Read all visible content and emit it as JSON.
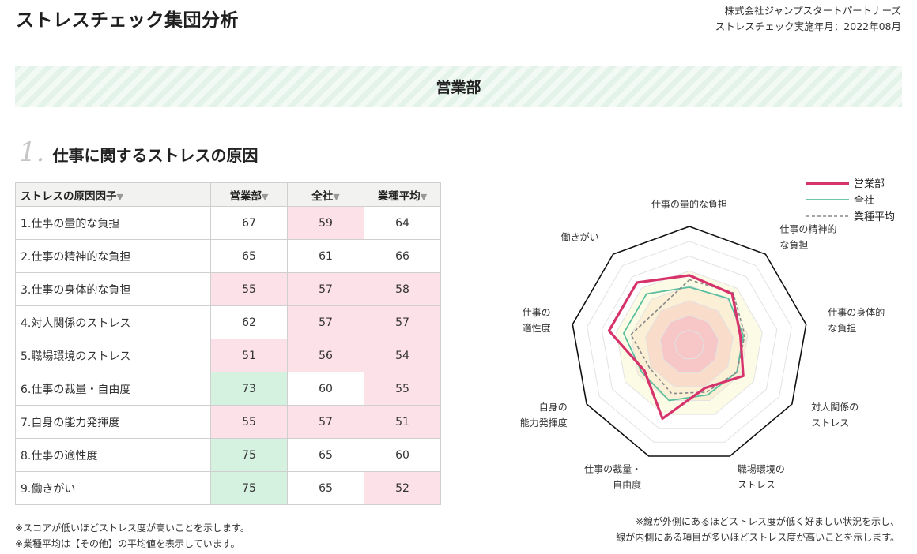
{
  "header": {
    "title": "ストレスチェック集団分析",
    "company": "株式会社ジャンプスタートパートナーズ",
    "date_line": "ストレスチェック実施年月：2022年08月"
  },
  "department": "営業部",
  "section": {
    "number": "1.",
    "title": "仕事に関するストレスの原因"
  },
  "table": {
    "columns": [
      "ストレスの原因因子",
      "営業部",
      "全社",
      "業種平均"
    ],
    "sort_glyph": "▼",
    "rows": [
      {
        "factor": "1.仕事の量的な負担",
        "dept": "67",
        "company": "59",
        "industry": "64",
        "dept_hl": "",
        "company_hl": "low",
        "industry_hl": ""
      },
      {
        "factor": "2.仕事の精神的な負担",
        "dept": "65",
        "company": "61",
        "industry": "66",
        "dept_hl": "",
        "company_hl": "",
        "industry_hl": ""
      },
      {
        "factor": "3.仕事の身体的な負担",
        "dept": "55",
        "company": "57",
        "industry": "58",
        "dept_hl": "low",
        "company_hl": "low",
        "industry_hl": "low"
      },
      {
        "factor": "4.対人関係のストレス",
        "dept": "62",
        "company": "57",
        "industry": "57",
        "dept_hl": "",
        "company_hl": "low",
        "industry_hl": "low"
      },
      {
        "factor": "5.職場環境のストレス",
        "dept": "51",
        "company": "56",
        "industry": "54",
        "dept_hl": "low",
        "company_hl": "low",
        "industry_hl": "low"
      },
      {
        "factor": "6.仕事の裁量・自由度",
        "dept": "73",
        "company": "60",
        "industry": "55",
        "dept_hl": "high",
        "company_hl": "",
        "industry_hl": "low"
      },
      {
        "factor": "7.自身の能力発揮度",
        "dept": "55",
        "company": "57",
        "industry": "51",
        "dept_hl": "low",
        "company_hl": "low",
        "industry_hl": "low"
      },
      {
        "factor": "8.仕事の適性度",
        "dept": "75",
        "company": "65",
        "industry": "60",
        "dept_hl": "high",
        "company_hl": "",
        "industry_hl": ""
      },
      {
        "factor": "9.働きがい",
        "dept": "75",
        "company": "65",
        "industry": "52",
        "dept_hl": "high",
        "company_hl": "",
        "industry_hl": "low"
      }
    ]
  },
  "notes_left": [
    "※スコアが低いほどストレス度が高いことを示します。",
    "※業種平均は【その他】の平均値を表示しています。"
  ],
  "notes_right": [
    "※線が外側にあるほどストレス度が低く好ましい状況を示し、",
    "線が内側にある項目が多いほどストレス度が高いことを示します。"
  ],
  "colors": {
    "dept": "#d6336c",
    "company": "#5bbf9f",
    "industry": "#888888",
    "low_cell": "#fce1e8",
    "high_cell": "#d5f1e0"
  },
  "chart_data": {
    "type": "radar",
    "axes": [
      [
        "仕事の量的な負担"
      ],
      [
        "仕事の精神的",
        "な負担"
      ],
      [
        "仕事の身体的",
        "な負担"
      ],
      [
        "対人関係の",
        "ストレス"
      ],
      [
        "職場環境の",
        "ストレス"
      ],
      [
        "仕事の裁量・",
        "自由度"
      ],
      [
        "自身の",
        "能力発揮度"
      ],
      [
        "仕事の",
        "適性度"
      ],
      [
        "働きがい"
      ]
    ],
    "range": [
      20,
      100
    ],
    "series": [
      {
        "name": "営業部",
        "values": [
          67,
          65,
          55,
          62,
          51,
          73,
          55,
          75,
          75
        ]
      },
      {
        "name": "全社",
        "values": [
          59,
          61,
          57,
          57,
          56,
          60,
          57,
          65,
          65
        ]
      },
      {
        "name": "業種平均",
        "values": [
          64,
          66,
          58,
          57,
          54,
          55,
          51,
          60,
          52
        ]
      }
    ],
    "bands": [
      {
        "upto": 40,
        "color": "#f7c6c6"
      },
      {
        "upto": 50,
        "color": "#f9dcc9"
      },
      {
        "upto": 60,
        "color": "#fbf0d6"
      },
      {
        "upto": 70,
        "color": "#fbfbe6"
      }
    ],
    "legend_position": "top-right"
  }
}
